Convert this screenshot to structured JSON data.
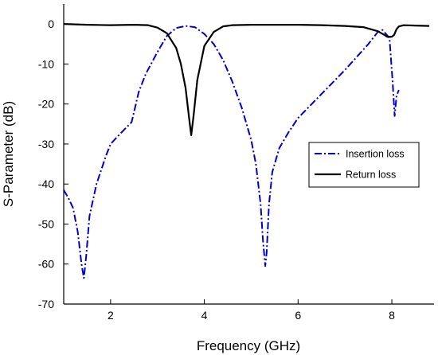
{
  "chart_data": {
    "type": "line",
    "xlabel": "Frequency (GHz)",
    "ylabel": "S-Parameter (dB)",
    "xlim": [
      1.0,
      8.9
    ],
    "ylim": [
      -70,
      5
    ],
    "xticks": [
      2,
      4,
      6,
      8
    ],
    "yticks": [
      0,
      -10,
      -20,
      -30,
      -40,
      -50,
      -60,
      -70
    ],
    "grid": false,
    "legend_position": "right",
    "series": [
      {
        "name": "Insertion loss",
        "color": "#0000cc",
        "style": "dash-dot",
        "x": [
          1.0,
          1.1,
          1.2,
          1.3,
          1.38,
          1.43,
          1.48,
          1.55,
          1.7,
          1.9,
          2.0,
          2.2,
          2.45,
          2.6,
          2.75,
          3.0,
          3.2,
          3.4,
          3.6,
          3.8,
          4.0,
          4.2,
          4.4,
          4.6,
          4.8,
          5.0,
          5.1,
          5.2,
          5.25,
          5.3,
          5.33,
          5.38,
          5.45,
          5.6,
          5.8,
          6.0,
          6.5,
          7.0,
          7.5,
          7.7,
          7.8,
          7.95,
          8.02,
          8.06,
          8.1,
          8.15
        ],
        "y": [
          -41.5,
          -43.5,
          -46,
          -52,
          -60,
          -63.5,
          -58,
          -48,
          -40,
          -33,
          -30,
          -27.5,
          -24.5,
          -17,
          -12.5,
          -7,
          -3,
          -1,
          -0.5,
          -0.8,
          -2.5,
          -5,
          -9,
          -14.5,
          -21,
          -29,
          -35,
          -45,
          -54,
          -60.5,
          -57,
          -45,
          -37,
          -31,
          -27,
          -23.5,
          -17.5,
          -11.5,
          -5,
          -2,
          -1.5,
          -3.5,
          -15,
          -23,
          -18,
          -16.5
        ]
      },
      {
        "name": "Return loss",
        "color": "#000000",
        "style": "solid",
        "x": [
          1.0,
          1.5,
          2.0,
          2.5,
          2.8,
          3.0,
          3.2,
          3.4,
          3.5,
          3.6,
          3.68,
          3.72,
          3.77,
          3.85,
          4.0,
          4.2,
          4.4,
          4.6,
          5.0,
          5.5,
          6.0,
          6.5,
          7.0,
          7.4,
          7.7,
          7.85,
          7.9,
          8.0,
          8.05,
          8.1,
          8.15,
          8.25,
          8.5,
          8.8
        ],
        "y": [
          0,
          -0.2,
          -0.3,
          -0.2,
          -0.3,
          -0.9,
          -2.3,
          -6,
          -10,
          -16,
          -24,
          -27.8,
          -23,
          -14,
          -5.5,
          -2,
          -0.6,
          -0.3,
          -0.2,
          -0.2,
          -0.2,
          -0.3,
          -0.5,
          -0.8,
          -1.8,
          -2.8,
          -3.2,
          -3.2,
          -2.7,
          -1.3,
          -0.6,
          -0.3,
          -0.4,
          -0.5
        ]
      }
    ]
  }
}
